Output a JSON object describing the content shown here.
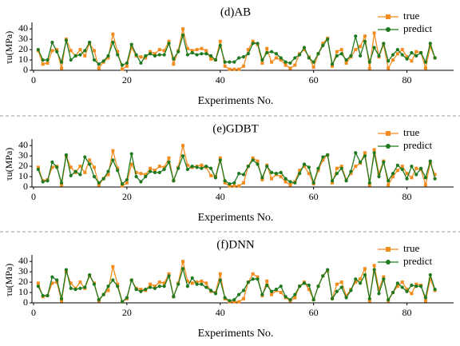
{
  "chart_data": [
    {
      "type": "line",
      "title": "(d)AB",
      "xlabel": "Experiments No.",
      "ylabel": "τu(MPa)",
      "xlim": [
        0,
        90
      ],
      "xticks": [
        0,
        20,
        40,
        60,
        80
      ],
      "ylim": [
        0,
        44
      ],
      "yticks": [
        0,
        10,
        20,
        30,
        40
      ],
      "legend": "upper right",
      "x": [
        1,
        2,
        3,
        4,
        5,
        6,
        7,
        8,
        9,
        10,
        11,
        12,
        13,
        14,
        15,
        16,
        17,
        18,
        19,
        20,
        21,
        22,
        23,
        24,
        25,
        26,
        27,
        28,
        29,
        30,
        31,
        32,
        33,
        34,
        35,
        36,
        37,
        38,
        39,
        40,
        41,
        42,
        43,
        44,
        45,
        46,
        47,
        48,
        49,
        50,
        51,
        52,
        53,
        54,
        55,
        56,
        57,
        58,
        59,
        60,
        61,
        62,
        63,
        64,
        65,
        66,
        67,
        68,
        69,
        70,
        71,
        72,
        73,
        74,
        75,
        76,
        77,
        78,
        79,
        80,
        81,
        82,
        83,
        84,
        85,
        86
      ],
      "series": [
        {
          "name": "true",
          "color": "#f28c1f",
          "marker": "square",
          "values": [
            19,
            6,
            7,
            19,
            20,
            2,
            30,
            19,
            14,
            20,
            14,
            26,
            19,
            2,
            8,
            12,
            35,
            18,
            1,
            4,
            22,
            14,
            13,
            12,
            18,
            16,
            20,
            19,
            28,
            6,
            19,
            40,
            21,
            19,
            20,
            21,
            19,
            11,
            10,
            28,
            4,
            1,
            1,
            1,
            4,
            20,
            28,
            25,
            7,
            21,
            8,
            12,
            10,
            5,
            2,
            5,
            16,
            20,
            13,
            3,
            16,
            26,
            31,
            4,
            18,
            20,
            7,
            13,
            20,
            23,
            33,
            2,
            36,
            13,
            25,
            2,
            10,
            16,
            20,
            13,
            9,
            18,
            17,
            2,
            23,
            12
          ]
        },
        {
          "name": "predict",
          "color": "#1f7a1f",
          "marker": "circle",
          "values": [
            20,
            10,
            10,
            27,
            18,
            8,
            29,
            10,
            14,
            15,
            19,
            27,
            10,
            6,
            9,
            14,
            27,
            15,
            5,
            7,
            25,
            15,
            7,
            14,
            16,
            14,
            15,
            15,
            26,
            11,
            18,
            34,
            15,
            17,
            15,
            16,
            16,
            14,
            10,
            24,
            8,
            8,
            8,
            12,
            13,
            16,
            26,
            26,
            10,
            17,
            18,
            16,
            12,
            8,
            7,
            12,
            15,
            22,
            12,
            8,
            16,
            24,
            30,
            6,
            14,
            16,
            10,
            14,
            33,
            14,
            28,
            8,
            22,
            14,
            26,
            9,
            15,
            20,
            15,
            11,
            17,
            14,
            17,
            8,
            26,
            12
          ]
        }
      ]
    },
    {
      "type": "line",
      "title": "(e)GDBT",
      "xlabel": "Experiments No.",
      "ylabel": "τu(MPa)",
      "xlim": [
        0,
        90
      ],
      "xticks": [
        0,
        20,
        40,
        60,
        80
      ],
      "ylim": [
        0,
        44
      ],
      "yticks": [
        0,
        10,
        20,
        30,
        40
      ],
      "legend": "upper right",
      "x": [
        1,
        2,
        3,
        4,
        5,
        6,
        7,
        8,
        9,
        10,
        11,
        12,
        13,
        14,
        15,
        16,
        17,
        18,
        19,
        20,
        21,
        22,
        23,
        24,
        25,
        26,
        27,
        28,
        29,
        30,
        31,
        32,
        33,
        34,
        35,
        36,
        37,
        38,
        39,
        40,
        41,
        42,
        43,
        44,
        45,
        46,
        47,
        48,
        49,
        50,
        51,
        52,
        53,
        54,
        55,
        56,
        57,
        58,
        59,
        60,
        61,
        62,
        63,
        64,
        65,
        66,
        67,
        68,
        69,
        70,
        71,
        72,
        73,
        74,
        75,
        76,
        77,
        78,
        79,
        80,
        81,
        82,
        83,
        84,
        85,
        86
      ],
      "series": [
        {
          "name": "true",
          "color": "#f28c1f",
          "marker": "square",
          "values": [
            19,
            6,
            7,
            19,
            20,
            2,
            30,
            19,
            14,
            20,
            14,
            26,
            19,
            2,
            8,
            12,
            35,
            18,
            1,
            4,
            22,
            14,
            13,
            12,
            18,
            16,
            20,
            19,
            28,
            6,
            19,
            40,
            21,
            19,
            20,
            21,
            19,
            11,
            10,
            28,
            4,
            1,
            1,
            1,
            4,
            20,
            28,
            25,
            7,
            21,
            8,
            12,
            10,
            5,
            2,
            5,
            16,
            20,
            13,
            3,
            16,
            26,
            31,
            4,
            18,
            20,
            7,
            13,
            20,
            23,
            33,
            2,
            36,
            13,
            25,
            2,
            10,
            16,
            20,
            13,
            9,
            18,
            17,
            2,
            23,
            12
          ]
        },
        {
          "name": "predict",
          "color": "#1f7a1f",
          "marker": "circle",
          "values": [
            17,
            5,
            6,
            24,
            19,
            4,
            31,
            11,
            15,
            12,
            29,
            22,
            10,
            4,
            8,
            15,
            26,
            16,
            3,
            7,
            32,
            10,
            5,
            10,
            15,
            14,
            14,
            17,
            24,
            6,
            18,
            30,
            17,
            20,
            19,
            18,
            20,
            18,
            9,
            26,
            6,
            3,
            4,
            13,
            12,
            20,
            26,
            22,
            9,
            20,
            14,
            13,
            14,
            8,
            5,
            4,
            13,
            22,
            19,
            4,
            18,
            29,
            31,
            6,
            13,
            18,
            6,
            15,
            33,
            24,
            30,
            4,
            33,
            10,
            24,
            6,
            13,
            21,
            17,
            8,
            20,
            12,
            18,
            9,
            25,
            8
          ]
        }
      ]
    },
    {
      "type": "line",
      "title": "(f)DNN",
      "xlabel": "Experiments No.",
      "ylabel": "τu(MPa)",
      "xlim": [
        0,
        90
      ],
      "xticks": [
        0,
        20,
        40,
        60,
        80
      ],
      "ylim": [
        0,
        44
      ],
      "yticks": [
        0,
        10,
        20,
        30,
        40
      ],
      "legend": "upper right",
      "x": [
        1,
        2,
        3,
        4,
        5,
        6,
        7,
        8,
        9,
        10,
        11,
        12,
        13,
        14,
        15,
        16,
        17,
        18,
        19,
        20,
        21,
        22,
        23,
        24,
        25,
        26,
        27,
        28,
        29,
        30,
        31,
        32,
        33,
        34,
        35,
        36,
        37,
        38,
        39,
        40,
        41,
        42,
        43,
        44,
        45,
        46,
        47,
        48,
        49,
        50,
        51,
        52,
        53,
        54,
        55,
        56,
        57,
        58,
        59,
        60,
        61,
        62,
        63,
        64,
        65,
        66,
        67,
        68,
        69,
        70,
        71,
        72,
        73,
        74,
        75,
        76,
        77,
        78,
        79,
        80,
        81,
        82,
        83,
        84,
        85,
        86
      ],
      "series": [
        {
          "name": "true",
          "color": "#f28c1f",
          "marker": "square",
          "values": [
            19,
            6,
            7,
            19,
            20,
            2,
            30,
            19,
            14,
            20,
            14,
            26,
            19,
            2,
            8,
            12,
            35,
            18,
            1,
            4,
            22,
            14,
            13,
            12,
            18,
            16,
            20,
            19,
            28,
            6,
            19,
            40,
            21,
            19,
            20,
            21,
            19,
            11,
            10,
            28,
            4,
            1,
            1,
            1,
            4,
            20,
            28,
            25,
            7,
            21,
            8,
            12,
            10,
            5,
            2,
            5,
            16,
            20,
            13,
            3,
            16,
            26,
            31,
            4,
            18,
            20,
            7,
            13,
            20,
            23,
            33,
            2,
            36,
            13,
            25,
            2,
            10,
            16,
            20,
            13,
            9,
            18,
            17,
            2,
            23,
            12
          ]
        },
        {
          "name": "predict",
          "color": "#1f7a1f",
          "marker": "circle",
          "values": [
            16,
            7,
            7,
            25,
            22,
            4,
            32,
            14,
            13,
            14,
            15,
            27,
            18,
            3,
            8,
            16,
            22,
            16,
            1,
            5,
            22,
            13,
            11,
            13,
            15,
            14,
            16,
            16,
            26,
            6,
            18,
            33,
            16,
            24,
            18,
            18,
            15,
            12,
            9,
            22,
            5,
            2,
            3,
            8,
            12,
            20,
            23,
            23,
            8,
            17,
            11,
            13,
            16,
            6,
            3,
            8,
            16,
            19,
            17,
            3,
            16,
            26,
            32,
            4,
            11,
            15,
            5,
            12,
            23,
            19,
            27,
            4,
            32,
            9,
            23,
            3,
            10,
            19,
            15,
            11,
            17,
            16,
            16,
            5,
            27,
            13
          ]
        }
      ]
    }
  ]
}
